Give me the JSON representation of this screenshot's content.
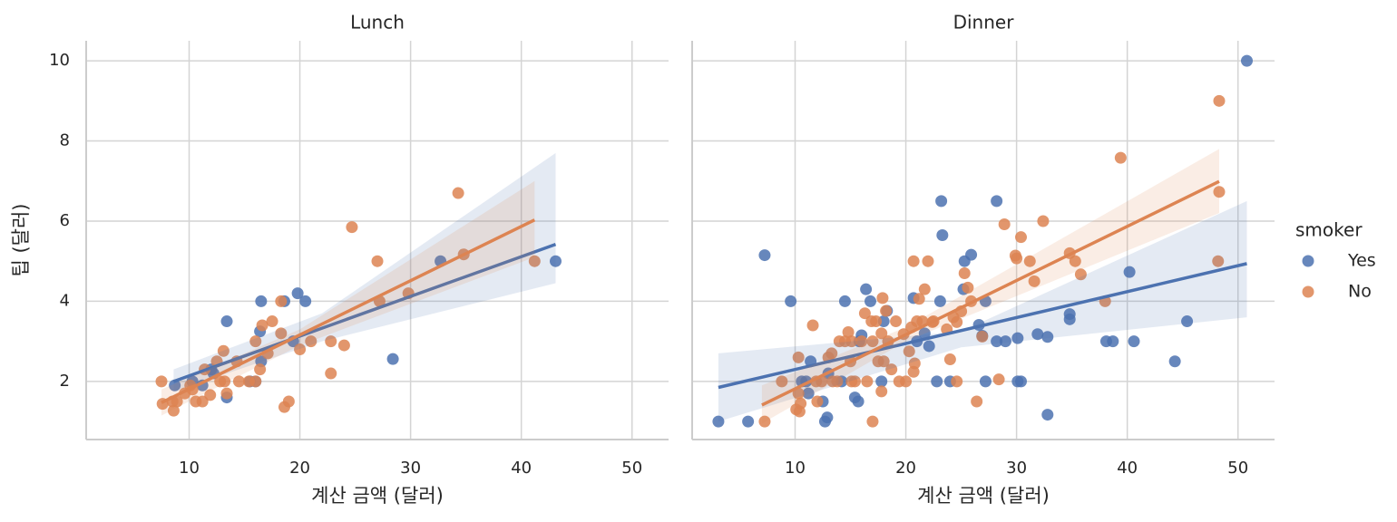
{
  "chart_data": [
    {
      "type": "scatter",
      "title": "Lunch",
      "x_label": "계산 금액 (달러)",
      "y_label": "팁 (달러)",
      "xlim": [
        0.7,
        53.3
      ],
      "ylim": [
        0.55,
        10.5
      ],
      "xticks": [
        10,
        20,
        30,
        40,
        50
      ],
      "yticks": [
        2,
        4,
        6,
        8,
        10
      ],
      "grid": true,
      "legend_title": "smoker",
      "legend": "right outside",
      "series": [
        {
          "name": "Yes",
          "color": "#4c72b0",
          "x": [
            8.7,
            10.3,
            11.2,
            12,
            12.2,
            13.4,
            13.4,
            15.5,
            16,
            16.4,
            16.5,
            16.5,
            18.6,
            19.4,
            19.8,
            20.5,
            28.4,
            32.7,
            43.1
          ],
          "values": [
            1.9,
            2.0,
            1.9,
            2.3,
            2.2,
            3.5,
            1.6,
            2.0,
            2.0,
            3.25,
            4.0,
            2.5,
            4.0,
            3.0,
            4.2,
            4.0,
            2.56,
            5.0,
            5.0
          ],
          "fit_x": [
            8.6,
            43.1
          ],
          "fit_y": [
            2.0,
            5.42
          ],
          "band_x": [
            8.6,
            22,
            43.1
          ],
          "band_lower": [
            1.75,
            3.0,
            4.45
          ],
          "band_upper": [
            2.3,
            3.7,
            7.7
          ]
        },
        {
          "name": "No",
          "color": "#dd8452",
          "x": [
            7.5,
            7.6,
            8.5,
            8.6,
            8.9,
            9.6,
            10.1,
            10.3,
            10.6,
            11.2,
            11.4,
            11.9,
            12.5,
            12.8,
            13.1,
            13.2,
            13.4,
            14.3,
            14.5,
            15.4,
            16,
            16,
            16.4,
            16.6,
            17.1,
            17.5,
            18.3,
            18.3,
            18.6,
            19,
            20,
            21,
            22.8,
            22.8,
            24,
            24.7,
            27,
            27.2,
            29.8,
            34.3,
            34.8,
            41.2
          ],
          "values": [
            2.0,
            1.44,
            1.5,
            1.27,
            1.5,
            1.7,
            1.9,
            1.8,
            1.5,
            1.5,
            2.3,
            1.66,
            2.5,
            2.0,
            2.76,
            2.0,
            1.7,
            2.5,
            2.0,
            2.0,
            3.0,
            2.0,
            2.3,
            3.4,
            2.7,
            3.5,
            3.2,
            4.0,
            1.36,
            1.5,
            2.8,
            3.0,
            2.2,
            3.0,
            2.9,
            5.85,
            5.0,
            4.0,
            4.2,
            6.7,
            5.17,
            5.0
          ],
          "fit_x": [
            7.5,
            41.2
          ],
          "fit_y": [
            1.47,
            6.03
          ],
          "band_x": [
            7.5,
            20,
            41.2
          ],
          "band_lower": [
            1.15,
            2.9,
            5.1
          ],
          "band_upper": [
            1.8,
            3.3,
            7.0
          ]
        }
      ]
    },
    {
      "type": "scatter",
      "title": "Dinner",
      "x_label": "계산 금액 (달러)",
      "xlim": [
        0.7,
        53.3
      ],
      "ylim": [
        0.55,
        10.5
      ],
      "xticks": [
        10,
        20,
        30,
        40,
        50
      ],
      "yticks": [
        2,
        4,
        6,
        8,
        10
      ],
      "grid": true,
      "series": [
        {
          "name": "Yes",
          "color": "#4c72b0",
          "x": [
            3.07,
            5.75,
            7.25,
            9.6,
            10.6,
            11,
            11.2,
            11.4,
            12.5,
            12.7,
            12.9,
            13,
            14.2,
            14.5,
            15.4,
            15.7,
            15.8,
            16,
            16.4,
            16.8,
            17.8,
            18,
            18.3,
            20.7,
            21,
            21.7,
            22.1,
            22.8,
            23.1,
            23.2,
            23.3,
            24,
            25.2,
            25.3,
            25.9,
            26.6,
            26.9,
            27.2,
            27.2,
            28.2,
            28.2,
            29,
            30.1,
            30.4,
            30.1,
            31.9,
            32.8,
            32.8,
            34.8,
            34.8,
            38.1,
            38.7,
            40.2,
            40.6,
            44.3,
            45.4,
            50.8
          ],
          "values": [
            1.0,
            1.0,
            5.15,
            4.0,
            2.0,
            2.0,
            1.7,
            2.5,
            1.5,
            1.0,
            1.1,
            2.2,
            2.0,
            4.0,
            1.6,
            1.5,
            3.0,
            3.15,
            4.3,
            4.0,
            2.0,
            3.5,
            3.76,
            4.08,
            3.0,
            3.2,
            2.88,
            2.0,
            4.0,
            6.5,
            5.65,
            2.0,
            4.3,
            5.0,
            5.16,
            3.41,
            3.14,
            4.0,
            2.0,
            3.0,
            6.5,
            3.0,
            2.0,
            2.0,
            3.08,
            3.18,
            3.11,
            1.17,
            3.55,
            3.68,
            3.0,
            3.0,
            4.73,
            3.0,
            2.5,
            3.5,
            10.0
          ],
          "fit_x": [
            3.07,
            50.8
          ],
          "fit_y": [
            1.85,
            4.94
          ],
          "band_x": [
            3.07,
            25,
            50.8
          ],
          "band_lower": [
            1.0,
            2.85,
            3.6
          ],
          "band_upper": [
            2.7,
            3.25,
            6.5
          ]
        },
        {
          "name": "No",
          "color": "#dd8452",
          "x": [
            7.25,
            8.8,
            10.1,
            10.3,
            10.3,
            10.4,
            10.5,
            11.6,
            11.9,
            12,
            12.4,
            13,
            13.3,
            13.4,
            13.8,
            14,
            14.5,
            14.8,
            15,
            15.1,
            15.1,
            15.4,
            16,
            16.3,
            16.5,
            16.9,
            17,
            17,
            17.3,
            17.5,
            17.8,
            17.8,
            17.9,
            18,
            18.2,
            18.4,
            18.7,
            19.1,
            19.4,
            19.8,
            20,
            20.3,
            20.5,
            20.7,
            20.7,
            20.8,
            21,
            21.2,
            21.5,
            21.7,
            22,
            22.4,
            22.5,
            23.7,
            24,
            24.3,
            24.6,
            24.6,
            25,
            25.3,
            25.6,
            25.9,
            26.4,
            26.9,
            28.4,
            28.9,
            29.9,
            30,
            30.4,
            31.2,
            31.6,
            32.4,
            34.8,
            35.3,
            35.8,
            38,
            39.4,
            48.2,
            48.3,
            48.3
          ],
          "values": [
            1.0,
            2.0,
            1.3,
            1.7,
            2.6,
            1.25,
            1.45,
            3.4,
            2.0,
            1.5,
            2.0,
            2.6,
            2.7,
            2.0,
            2.0,
            3.0,
            3.0,
            3.23,
            2.5,
            3.0,
            2.0,
            2.0,
            3.0,
            3.7,
            2.0,
            3.5,
            1.0,
            3.0,
            3.5,
            2.5,
            3.2,
            1.75,
            4.08,
            2.5,
            3.76,
            3.0,
            2.3,
            3.5,
            2.0,
            3.18,
            2.0,
            2.75,
            3.35,
            5.0,
            2.24,
            2.45,
            3.5,
            4.06,
            3.5,
            4.3,
            5.0,
            3.48,
            3.5,
            3.3,
            2.55,
            3.6,
            3.48,
            2.0,
            3.75,
            4.7,
            4.34,
            4.0,
            1.5,
            3.12,
            2.05,
            5.92,
            5.14,
            5.07,
            5.6,
            5.0,
            4.5,
            6.0,
            5.2,
            5.0,
            4.67,
            4.0,
            7.58,
            5.0,
            6.73,
            9.0
          ],
          "fit_x": [
            7.0,
            48.3
          ],
          "fit_y": [
            1.41,
            6.99
          ],
          "band_x": [
            7.0,
            20,
            48.3
          ],
          "band_lower": [
            0.95,
            3.0,
            6.2
          ],
          "band_upper": [
            1.9,
            3.35,
            7.8
          ]
        }
      ]
    }
  ]
}
